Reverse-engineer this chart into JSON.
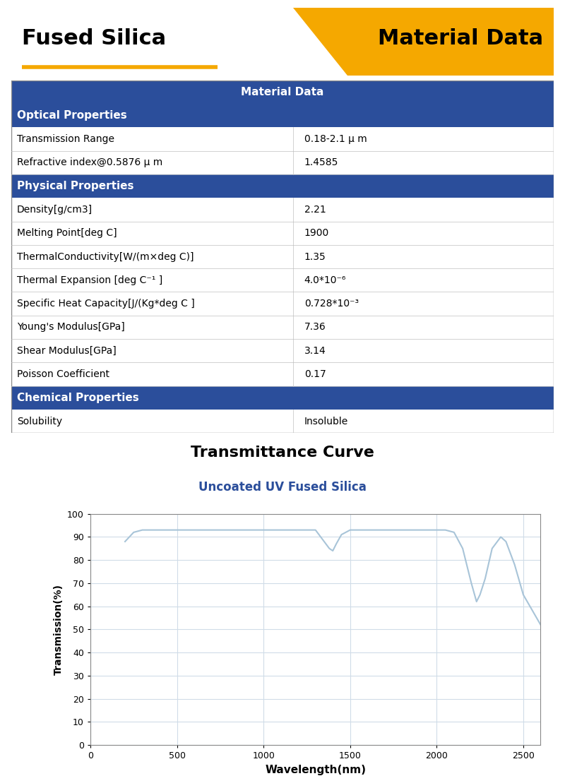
{
  "title_left": "Fused Silica",
  "title_right": "Material Data",
  "title_bg_color": "#F5A800",
  "header_bg_color": "#2B4E9B",
  "header_text_color": "#FFFFFF",
  "section_bg_color": "#2B4E9B",
  "section_text_color": "#FFFFFF",
  "row_bg_color": "#FFFFFF",
  "row_text_color": "#000000",
  "border_color": "#CCCCCC",
  "table_header": "Material Data",
  "sections": [
    {
      "name": "Optical Properties",
      "rows": [
        [
          "Transmission Range",
          "0.18-2.1 μ m"
        ],
        [
          "Refractive index@0.5876 μ m",
          "1.4585"
        ]
      ]
    },
    {
      "name": "Physical Properties",
      "rows": [
        [
          "Density[g/cm3]",
          "2.21"
        ],
        [
          "Melting Point[deg C]",
          "1900"
        ],
        [
          "ThermalConductivity[W/(m×deg C)]",
          "1.35"
        ],
        [
          "Thermal Expansion [deg C⁻¹ ]",
          "4.0*10⁻⁶"
        ],
        [
          "Specific Heat Capacity[J/(Kg*deg C ]",
          "0.728*10⁻³"
        ],
        [
          "Young's Modulus[GPa]",
          "7.36"
        ],
        [
          "Shear Modulus[GPa]",
          "3.14"
        ],
        [
          "Poisson Coefficient",
          "0.17"
        ]
      ]
    },
    {
      "name": "Chemical Properties",
      "rows": [
        [
          "Solubility",
          "Insoluble"
        ]
      ]
    }
  ],
  "chart_title": "Transmittance Curve",
  "chart_subtitle": "Uncoated UV Fused Silica",
  "chart_subtitle_color": "#2B4E9B",
  "xlabel": "Wavelength(nm)",
  "ylabel": "Transmission(%)",
  "line_color": "#A8C4D8",
  "grid_color": "#D0DCE8",
  "wavelength": [
    200,
    250,
    300,
    350,
    400,
    500,
    600,
    700,
    800,
    900,
    1000,
    1100,
    1200,
    1300,
    1350,
    1380,
    1400,
    1420,
    1450,
    1500,
    1600,
    1700,
    1800,
    1900,
    2000,
    2050,
    2100,
    2150,
    2200,
    2230,
    2250,
    2280,
    2320,
    2370,
    2400,
    2450,
    2500,
    2600
  ],
  "transmission": [
    88,
    92,
    93,
    93,
    93,
    93,
    93,
    93,
    93,
    93,
    93,
    93,
    93,
    93,
    88,
    85,
    84,
    87,
    91,
    93,
    93,
    93,
    93,
    93,
    93,
    93,
    92,
    85,
    70,
    62,
    65,
    72,
    85,
    90,
    88,
    78,
    65,
    52
  ],
  "ylim": [
    0,
    100
  ],
  "xlim": [
    0,
    2600
  ],
  "yticks": [
    0,
    10,
    20,
    30,
    40,
    50,
    60,
    70,
    80,
    90,
    100
  ],
  "xticks": [
    0,
    500,
    1000,
    1500,
    2000,
    2500
  ]
}
